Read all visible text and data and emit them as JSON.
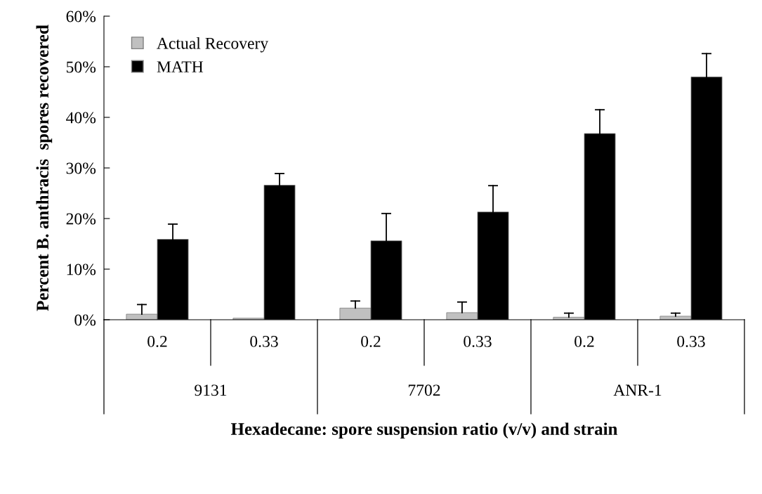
{
  "chart_data": {
    "type": "bar",
    "xlabel": "Hexadecane: spore suspension ratio (v/v) and strain",
    "ylabel": "Percent B. anthracis  spores recovered",
    "categories": [
      "0.2",
      "0.33",
      "0.2",
      "0.33",
      "0.2",
      "0.33"
    ],
    "annotations": [
      "9131",
      "7702",
      "ANR-1"
    ],
    "series": [
      {
        "name": "Actual Recovery",
        "color": "#c0c0c0",
        "values": [
          1.1,
          0.3,
          2.3,
          1.4,
          0.5,
          0.7
        ],
        "errors": [
          [
            1.1,
            3.0
          ],
          null,
          [
            2.3,
            3.7
          ],
          [
            1.4,
            3.5
          ],
          [
            0.5,
            1.3
          ],
          [
            0.7,
            1.3
          ]
        ]
      },
      {
        "name": "MATH",
        "color": "#000000",
        "values": [
          15.9,
          26.6,
          15.6,
          21.3,
          36.8,
          48.0
        ],
        "errors": [
          [
            15.9,
            18.9
          ],
          [
            26.6,
            28.9
          ],
          [
            15.6,
            21.0
          ],
          [
            21.3,
            26.5
          ],
          [
            36.8,
            41.5
          ],
          [
            48.0,
            52.6
          ]
        ]
      }
    ],
    "ylim": [
      0,
      60
    ],
    "yticks": [
      {
        "value": 0,
        "label": "0%"
      },
      {
        "value": 10,
        "label": "10%"
      },
      {
        "value": 20,
        "label": "20%"
      },
      {
        "value": 30,
        "label": "30%"
      },
      {
        "value": 40,
        "label": "40%"
      },
      {
        "value": 50,
        "label": "50%"
      },
      {
        "value": 60,
        "label": "60%"
      }
    ],
    "grid": false,
    "legend": "top left"
  }
}
